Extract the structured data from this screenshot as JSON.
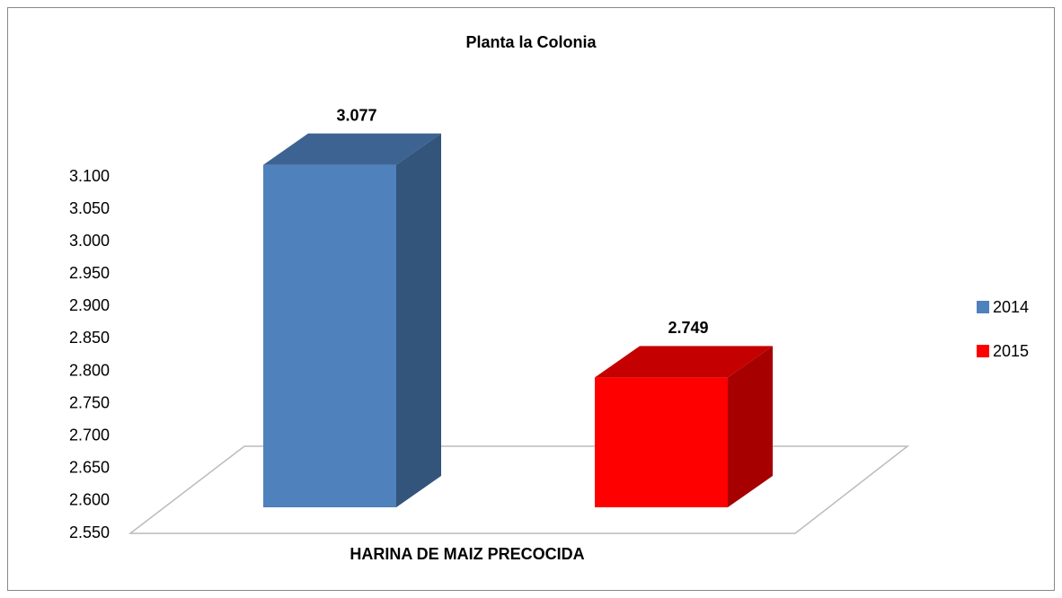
{
  "chart_data": {
    "type": "bar3d",
    "title": "Planta la Colonia",
    "categories": [
      "HARINA DE MAIZ PRECOCIDA"
    ],
    "series": [
      {
        "name": "2014",
        "color": "#4f81bd",
        "values": [
          3.077
        ]
      },
      {
        "name": "2015",
        "color": "#ff0000",
        "values": [
          2.749
        ]
      }
    ],
    "ylim": [
      2.55,
      3.1
    ],
    "yticks": [
      {
        "value": 2.55,
        "label": "2.550"
      },
      {
        "value": 2.6,
        "label": "2.600"
      },
      {
        "value": 2.65,
        "label": "2.650"
      },
      {
        "value": 2.7,
        "label": "2.700"
      },
      {
        "value": 2.75,
        "label": "2.750"
      },
      {
        "value": 2.8,
        "label": "2.800"
      },
      {
        "value": 2.85,
        "label": "2.850"
      },
      {
        "value": 2.9,
        "label": "2.900"
      },
      {
        "value": 2.95,
        "label": "2.950"
      },
      {
        "value": 3.0,
        "label": "3.000"
      },
      {
        "value": 3.05,
        "label": "3.050"
      },
      {
        "value": 3.1,
        "label": "3.100"
      }
    ],
    "legend": "right",
    "grid": false
  }
}
